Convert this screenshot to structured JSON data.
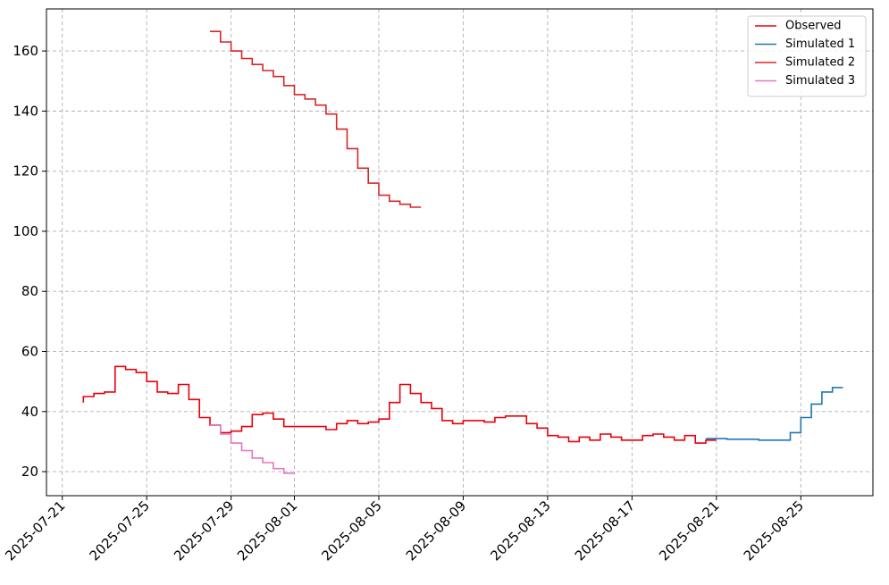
{
  "chart_data": {
    "type": "step",
    "x": [
      "2025-07-22T00:00",
      "2025-07-22T12:00",
      "2025-07-23T00:00",
      "2025-07-23T12:00",
      "2025-07-24T00:00",
      "2025-07-24T12:00",
      "2025-07-25T00:00",
      "2025-07-25T12:00",
      "2025-07-26T00:00",
      "2025-07-26T12:00",
      "2025-07-27T00:00",
      "2025-07-27T12:00",
      "2025-07-28T00:00",
      "2025-07-28T12:00",
      "2025-07-29T00:00",
      "2025-07-29T12:00",
      "2025-07-30T00:00",
      "2025-07-30T12:00",
      "2025-07-31T00:00",
      "2025-07-31T12:00",
      "2025-08-01T00:00",
      "2025-08-01T12:00",
      "2025-08-02T00:00",
      "2025-08-02T12:00",
      "2025-08-03T00:00",
      "2025-08-03T12:00",
      "2025-08-04T00:00",
      "2025-08-04T12:00",
      "2025-08-05T00:00",
      "2025-08-05T12:00",
      "2025-08-06T00:00",
      "2025-08-06T12:00",
      "2025-08-07T00:00",
      "2025-08-07T12:00",
      "2025-08-08T00:00",
      "2025-08-08T12:00",
      "2025-08-09T00:00",
      "2025-08-09T12:00",
      "2025-08-10T00:00",
      "2025-08-10T12:00",
      "2025-08-11T00:00",
      "2025-08-11T12:00",
      "2025-08-12T00:00",
      "2025-08-12T12:00",
      "2025-08-13T00:00",
      "2025-08-13T12:00",
      "2025-08-14T00:00",
      "2025-08-14T12:00",
      "2025-08-15T00:00",
      "2025-08-15T12:00",
      "2025-08-16T00:00",
      "2025-08-16T12:00",
      "2025-08-17T00:00",
      "2025-08-17T12:00",
      "2025-08-18T00:00",
      "2025-08-18T12:00",
      "2025-08-19T00:00",
      "2025-08-19T12:00",
      "2025-08-20T00:00",
      "2025-08-20T12:00",
      "2025-08-21T00:00",
      "2025-08-21T12:00",
      "2025-08-22T00:00",
      "2025-08-22T12:00",
      "2025-08-23T00:00",
      "2025-08-23T12:00",
      "2025-08-24T00:00",
      "2025-08-24T12:00",
      "2025-08-25T00:00",
      "2025-08-25T12:00",
      "2025-08-26T00:00",
      "2025-08-26T12:00",
      "2025-08-27T00:00"
    ],
    "series": [
      {
        "name": "Observed",
        "color": "#e8000b",
        "values": [
          43,
          45,
          46,
          46.5,
          55,
          54,
          53,
          50,
          46.5,
          46,
          49,
          44,
          38,
          35.5,
          33,
          33.5,
          35,
          39,
          39.5,
          37.5,
          35,
          35,
          35,
          35,
          34,
          36,
          37,
          36,
          36.5,
          37.5,
          43,
          49,
          46,
          43,
          41,
          37,
          36,
          37,
          37,
          36.5,
          38,
          38.5,
          38.5,
          36,
          34.5,
          32,
          31.5,
          30,
          31.5,
          30.5,
          32.5,
          31.5,
          30.5,
          30.5,
          32,
          32.5,
          31.5,
          30.5,
          32,
          29.5,
          30.5,
          null,
          null,
          null,
          null,
          null,
          null,
          null,
          null,
          null,
          null,
          null,
          null
        ]
      },
      {
        "name": "Simulated 1",
        "color": "#1f77b4",
        "values": [
          null,
          null,
          null,
          null,
          null,
          null,
          null,
          null,
          null,
          null,
          null,
          null,
          null,
          null,
          null,
          null,
          null,
          null,
          null,
          null,
          null,
          null,
          null,
          null,
          null,
          null,
          null,
          null,
          null,
          null,
          null,
          null,
          null,
          null,
          null,
          null,
          null,
          null,
          null,
          null,
          null,
          null,
          null,
          null,
          null,
          null,
          null,
          null,
          null,
          null,
          null,
          null,
          null,
          null,
          null,
          null,
          null,
          null,
          null,
          31,
          31,
          31,
          30.8,
          30.8,
          30.8,
          30.5,
          30.5,
          30.5,
          33,
          38,
          42.5,
          46.5,
          48
        ]
      },
      {
        "name": "Simulated 2",
        "color": "#d62728",
        "values": [
          null,
          null,
          null,
          null,
          null,
          null,
          null,
          null,
          null,
          null,
          null,
          null,
          166.5,
          166.5,
          163,
          160,
          157.5,
          155.5,
          153.5,
          151.5,
          148.5,
          145.5,
          144,
          142,
          139,
          134,
          127.5,
          121,
          116,
          112,
          110,
          109,
          108,
          null,
          null,
          null,
          null,
          null,
          null,
          null,
          null,
          null,
          null,
          null,
          null,
          null,
          null,
          null,
          null,
          null,
          null,
          null,
          null,
          null,
          null,
          null,
          null,
          null,
          null,
          null,
          null,
          null,
          null,
          null,
          null,
          null,
          null,
          null,
          null,
          null,
          null,
          null,
          null
        ]
      },
      {
        "name": "Simulated 3",
        "color": "#e377c2",
        "values": [
          null,
          null,
          null,
          null,
          null,
          null,
          null,
          null,
          null,
          null,
          null,
          null,
          35.5,
          35.5,
          32.5,
          29.5,
          27,
          24.5,
          23,
          21,
          19.5,
          null,
          null,
          null,
          null,
          null,
          null,
          null,
          null,
          null,
          null,
          null,
          null,
          null,
          null,
          null,
          null,
          null,
          null,
          null,
          null,
          null,
          null,
          null,
          null,
          null,
          null,
          null,
          null,
          null,
          null,
          null,
          null,
          null,
          null,
          null,
          null,
          null,
          null,
          null,
          null,
          null,
          null,
          null,
          null,
          null,
          null,
          null,
          null,
          null,
          null,
          null,
          null
        ]
      }
    ],
    "xlim": [
      "2025-07-20T06:00",
      "2025-08-28T10:00"
    ],
    "xticks": [
      "2025-07-21",
      "2025-07-25",
      "2025-07-29",
      "2025-08-01",
      "2025-08-05",
      "2025-08-09",
      "2025-08-13",
      "2025-08-17",
      "2025-08-21",
      "2025-08-25"
    ],
    "ylim": [
      12,
      174
    ],
    "yticks": [
      20,
      40,
      60,
      80,
      100,
      120,
      140,
      160
    ],
    "grid": true,
    "legend": "upper right"
  }
}
